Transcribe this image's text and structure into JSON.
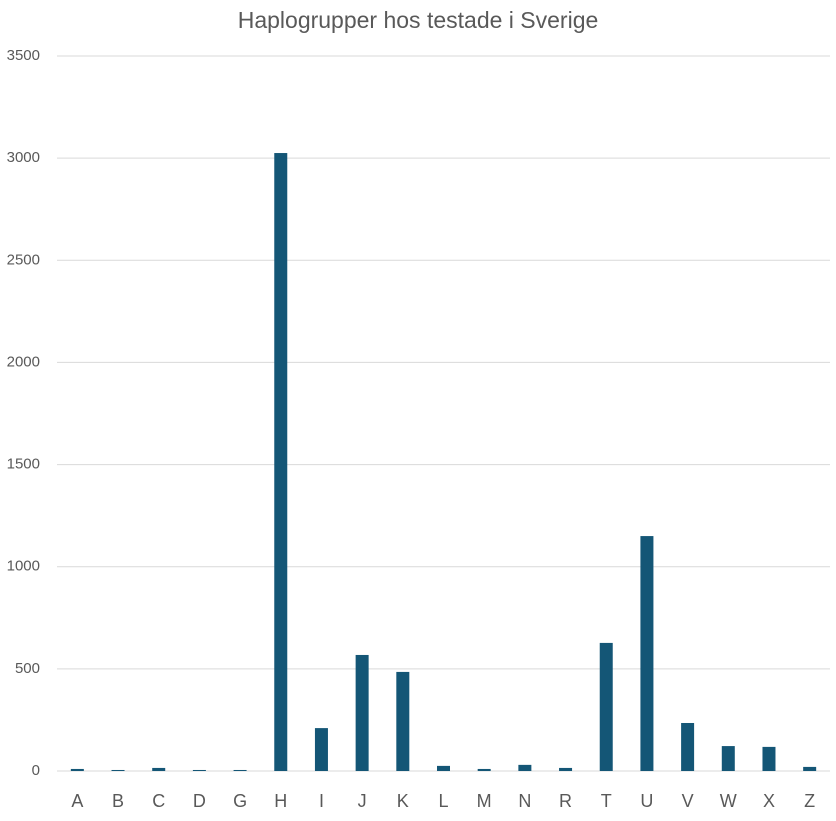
{
  "chart_data": {
    "type": "bar",
    "title": "Haplogrupper hos testade i Sverige",
    "categories": [
      "A",
      "B",
      "C",
      "D",
      "G",
      "H",
      "I",
      "J",
      "K",
      "L",
      "M",
      "N",
      "R",
      "T",
      "U",
      "V",
      "W",
      "X",
      "Z"
    ],
    "values": [
      10,
      5,
      15,
      5,
      5,
      3025,
      210,
      568,
      485,
      25,
      10,
      30,
      15,
      627,
      1150,
      235,
      122,
      118,
      20
    ],
    "color": "#145676",
    "ylim": [
      0,
      3500
    ],
    "yticks": [
      0,
      500,
      1000,
      1500,
      2000,
      2500,
      3000,
      3500
    ],
    "grid": true
  }
}
